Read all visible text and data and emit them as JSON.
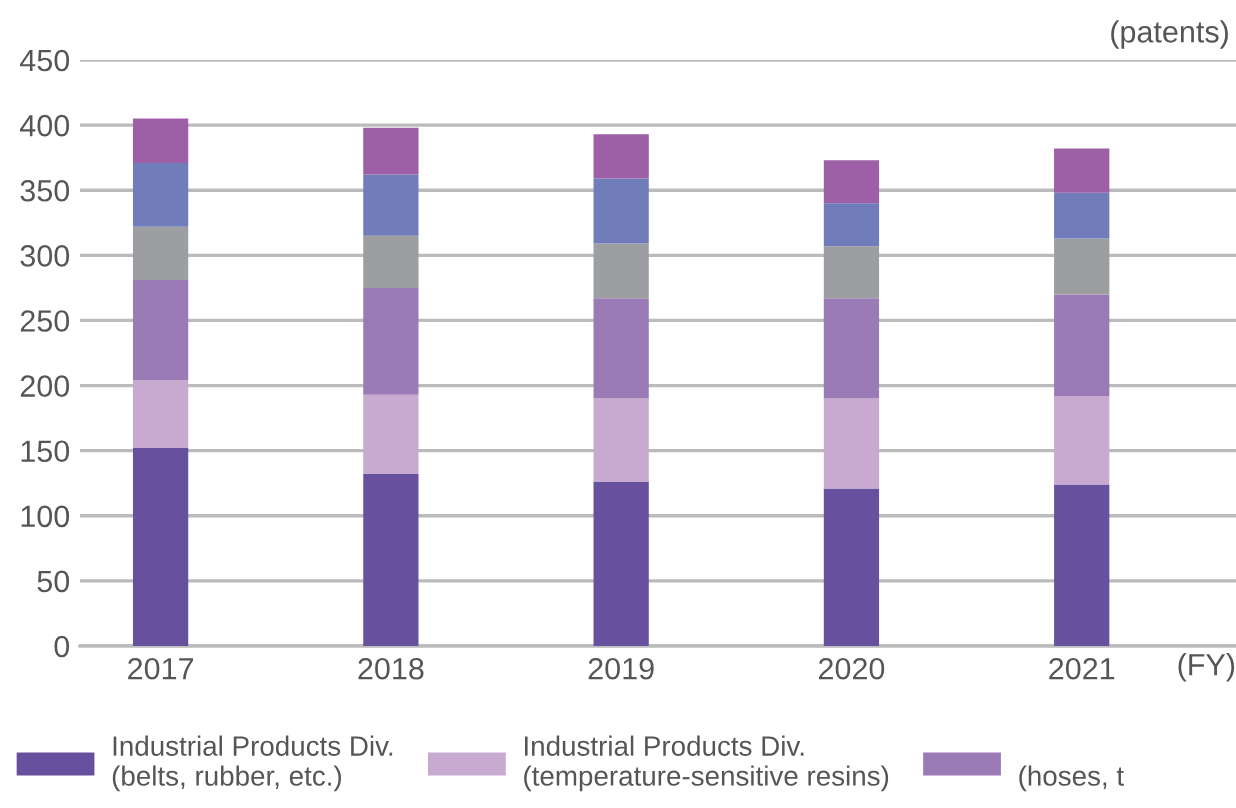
{
  "chart_data": {
    "type": "bar",
    "stacked": true,
    "ylabel": "(patents)",
    "xlabel": "(FY)",
    "categories": [
      "2017",
      "2018",
      "2019",
      "2020",
      "2021"
    ],
    "series": [
      {
        "name": "Industrial Products Div.\n(belts, rubber, etc.)",
        "color": "#67519e",
        "values": [
          152,
          132,
          126,
          121,
          124
        ]
      },
      {
        "name": "Industrial Products Div.\n(temperature-sensitive resins)",
        "color": "#c8a9cf",
        "values": [
          52,
          61,
          64,
          69,
          68
        ]
      },
      {
        "name": "\n(hoses, t",
        "color": "#9b7bb5",
        "values": [
          77,
          82,
          77,
          77,
          78
        ]
      },
      {
        "color": "#9d9ea2",
        "values": [
          41,
          40,
          42,
          40,
          43
        ]
      },
      {
        "color": "#707dba",
        "values": [
          49,
          47,
          50,
          33,
          35
        ]
      },
      {
        "color": "#9d5fa5",
        "values": [
          34,
          36,
          34,
          33,
          34
        ]
      }
    ],
    "ylim": [
      0,
      450
    ],
    "yticks": [
      0,
      50,
      100,
      150,
      200,
      250,
      300,
      350,
      400,
      450
    ],
    "grid": "y",
    "legend": "bottom"
  }
}
